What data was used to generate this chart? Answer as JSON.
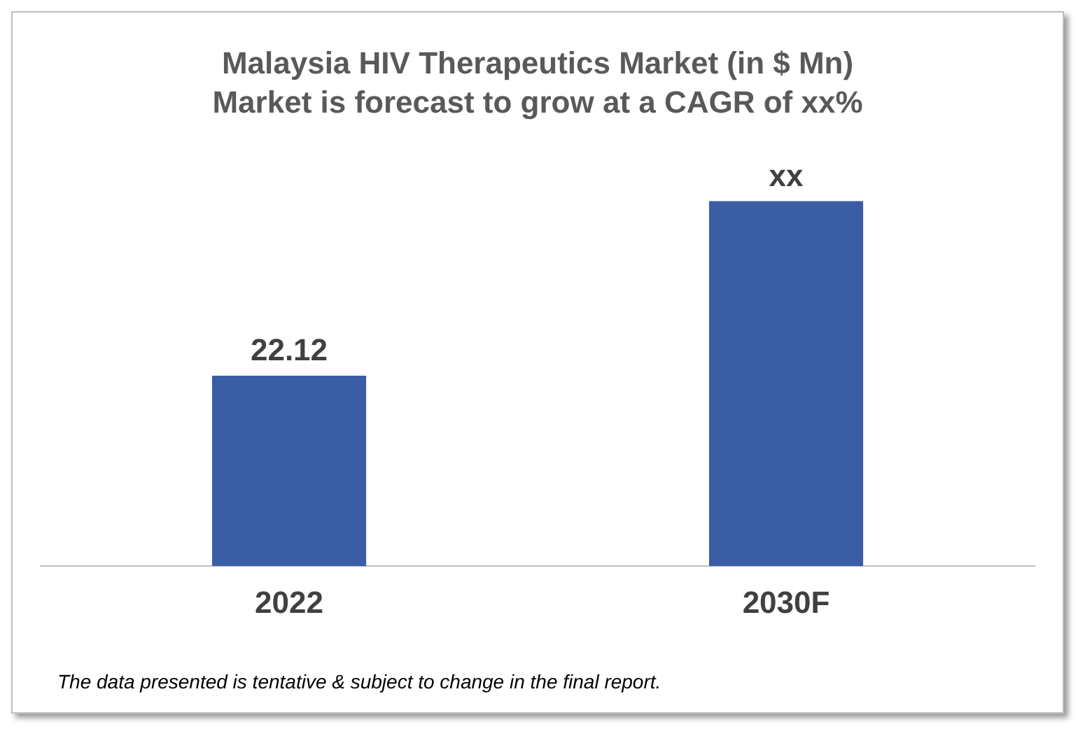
{
  "chart_data": {
    "type": "bar",
    "title": "Malaysia HIV Therapeutics Market (in $ Mn)",
    "subtitle": "Market is forecast to grow at a CAGR of xx%",
    "categories": [
      "2022",
      "2030F"
    ],
    "values": [
      22.12,
      42.4
    ],
    "value_labels": [
      "22.12",
      "xx"
    ],
    "color": "#3a5da5",
    "grid": false,
    "legend": false,
    "annotations": [
      "The data presented is tentative & subject to change in the final report."
    ]
  }
}
